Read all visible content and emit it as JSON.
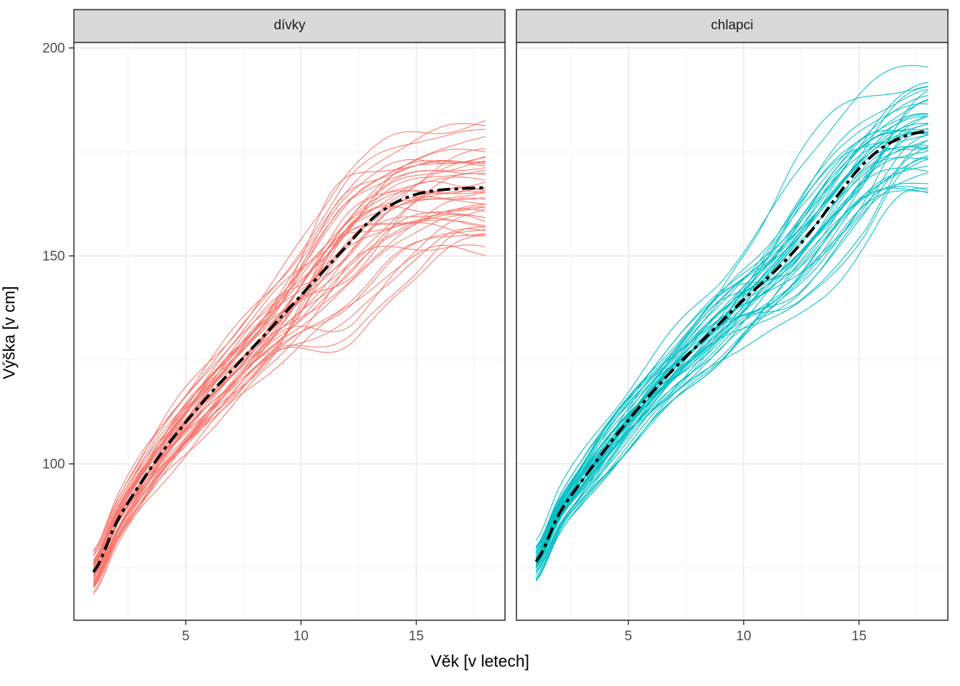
{
  "figure": {
    "background": "#FFFFFF",
    "panel_fill": "#FFFFFF",
    "panel_border_color": "#333333",
    "strip_fill": "#D9D9D9",
    "strip_border_color": "#333333",
    "grid_major_color": "#E4E4E4",
    "grid_minor_color": "#F0F0F0",
    "tick_color": "#333333",
    "tick_label_color": "#4D4D4D"
  },
  "chart_data": {
    "type": "line",
    "title": "",
    "xlabel": "Věk [v letech]",
    "ylabel": "Výška [v cm]",
    "x_ticks": [
      5,
      10,
      15
    ],
    "x_minor_ticks": [
      2.5,
      7.5,
      12.5,
      17.5
    ],
    "y_ticks": [
      100,
      150,
      200
    ],
    "y_minor_ticks": [
      75,
      125,
      175
    ],
    "xlim": [
      0.15,
      18.85
    ],
    "ylim": [
      62.4,
      201.3
    ],
    "grid": true,
    "legend": "none",
    "ages": [
      1,
      2,
      3,
      4,
      5,
      6,
      7,
      8,
      9,
      10,
      11,
      12,
      13,
      14,
      15,
      16,
      17,
      18
    ],
    "facets": [
      {
        "label": "dívky",
        "line_color": "#F8766D",
        "individuals": {
          "count": 46,
          "seed": 11,
          "offset_min": -1.9,
          "offset_max": 2.2
        },
        "mean_series": {
          "name": "mean-height-girls",
          "values": [
            74,
            86,
            95,
            103,
            110,
            116.5,
            122.5,
            128.5,
            134.5,
            140.5,
            146.5,
            152.5,
            158.5,
            162.5,
            164.8,
            165.8,
            166.2,
            166.4
          ]
        }
      },
      {
        "label": "chlapci",
        "line_color": "#00BFC4",
        "individuals": {
          "count": 46,
          "seed": 29,
          "offset_min": -1.75,
          "offset_max": 2.0
        },
        "mean_series": {
          "name": "mean-height-boys",
          "values": [
            76.5,
            88,
            96,
            103.5,
            110.5,
            117,
            123,
            128.5,
            134,
            139.5,
            144.5,
            150,
            156.5,
            164,
            171,
            176,
            178.8,
            180
          ]
        }
      }
    ],
    "mean_line": {
      "color": "#000000",
      "style": "dash-dot",
      "width": 4
    }
  }
}
